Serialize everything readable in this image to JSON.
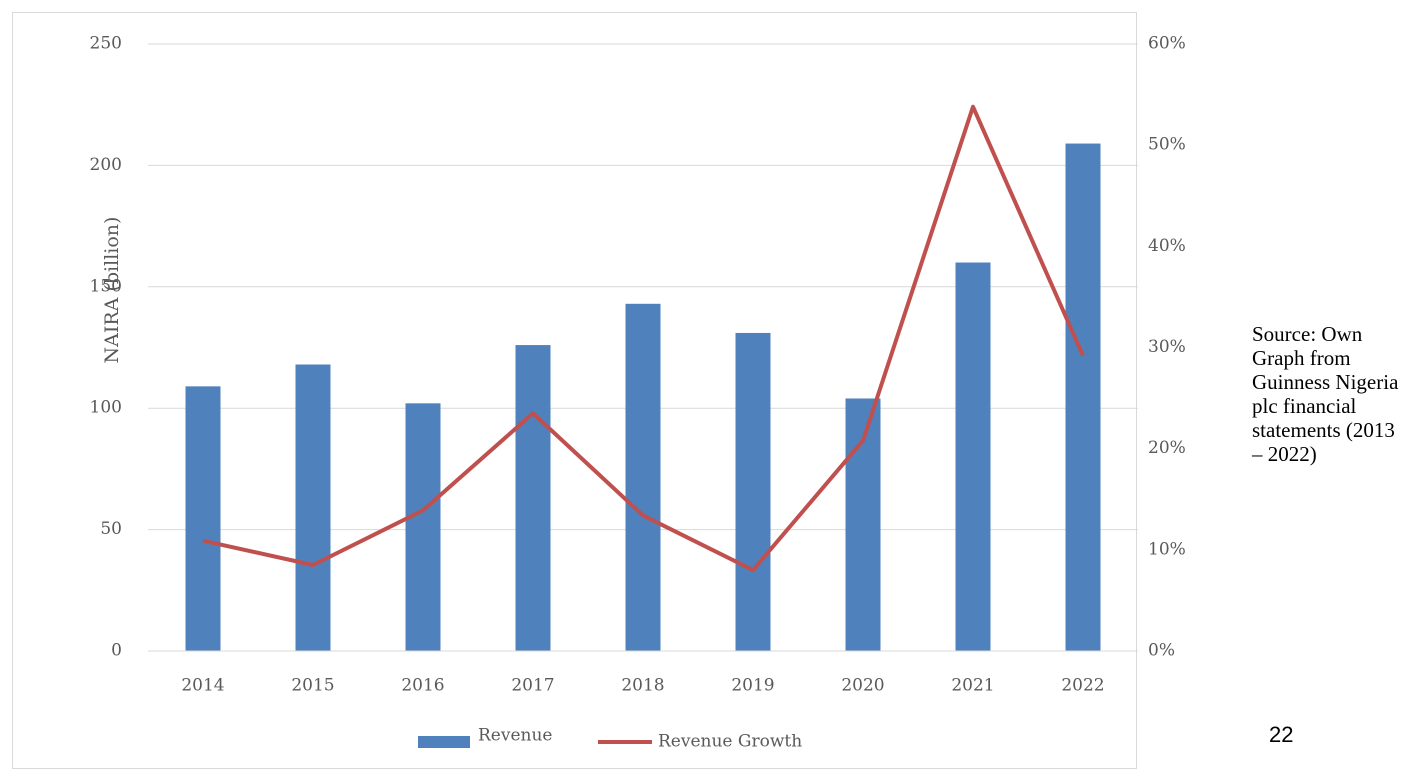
{
  "chart_data": {
    "type": "bar",
    "categories": [
      "2014",
      "2015",
      "2016",
      "2017",
      "2018",
      "2019",
      "2020",
      "2021",
      "2022"
    ],
    "series": [
      {
        "name": "Revenue",
        "color": "#4f81bd",
        "type": "bar",
        "values": [
          109,
          118,
          102,
          126,
          143,
          131,
          104,
          160,
          209
        ]
      },
      {
        "name": "Revenue Growth",
        "color": "#c0504d",
        "type": "line",
        "axis": "y2",
        "values": [
          10.9,
          8.5,
          13.9,
          23.5,
          13.4,
          8.0,
          20.8,
          53.8,
          29.2
        ]
      }
    ],
    "y_label": "NAIRA (billion)",
    "ylim": [
      0,
      250
    ],
    "yticks": [
      0,
      50,
      100,
      150,
      200,
      250
    ],
    "y2lim": [
      0,
      60
    ],
    "y2ticks": [
      {
        "value": 0,
        "label": "0%"
      },
      {
        "value": 10,
        "label": "10%"
      },
      {
        "value": 20,
        "label": "20%"
      },
      {
        "value": 30,
        "label": "30%"
      },
      {
        "value": 40,
        "label": "40%"
      },
      {
        "value": 50,
        "label": "50%"
      },
      {
        "value": 60,
        "label": "60%"
      }
    ],
    "grid": true,
    "legend": "bottom"
  },
  "source": "Source: Own Graph from Guinness Nigeria plc financial statements (2013 – 2022)",
  "page_number": "22"
}
